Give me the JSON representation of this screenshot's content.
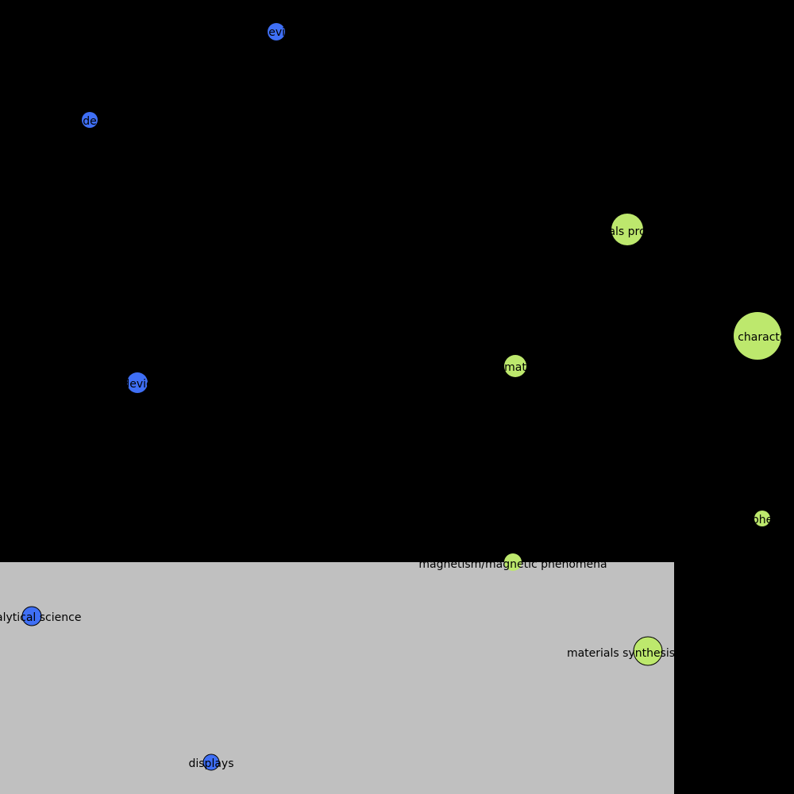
{
  "colors": {
    "background": "#000000",
    "panel": "#c0c0c0",
    "cluster_blue": "#3f6ff5",
    "cluster_green": "#bde86d",
    "node_stroke": "#000000"
  },
  "nodes": [
    {
      "label": "devic",
      "cluster": "blue"
    },
    {
      "label": "de",
      "cluster": "blue"
    },
    {
      "label": "devic",
      "cluster": "blue"
    },
    {
      "label": "analytical science",
      "cluster": "blue"
    },
    {
      "label": "displays",
      "cluster": "blue"
    },
    {
      "label": "als pro",
      "cluster": "green"
    },
    {
      "label": "s characte",
      "cluster": "green"
    },
    {
      "label": "mat",
      "cluster": "green"
    },
    {
      "label": "phe",
      "cluster": "green"
    },
    {
      "label": "magnetism/magnetic phenomena",
      "cluster": "green"
    },
    {
      "label": "materials synthesis",
      "cluster": "green"
    }
  ]
}
